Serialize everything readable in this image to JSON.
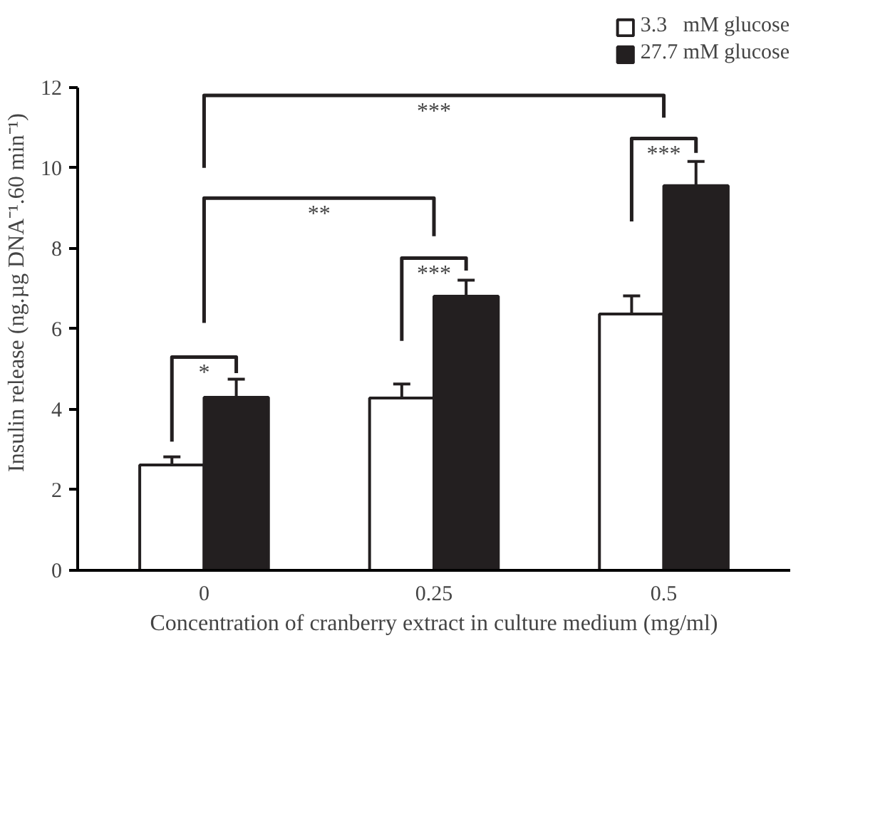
{
  "chart_data": {
    "type": "bar",
    "categories": [
      "0",
      "0.25",
      "0.5"
    ],
    "xlabel": "Concentration of cranberry extract in culture medium (mg/ml)",
    "ylabel": "Insulin release (ng.µg DNA⁻¹.60 min⁻¹)",
    "series": [
      {
        "name": "3.3   mM glucose",
        "color": "#ffffff",
        "values": [
          2.62,
          4.28,
          6.37
        ],
        "errors": [
          [
            2.62,
            2.82
          ],
          [
            4.28,
            4.63
          ],
          [
            6.37,
            6.82
          ]
        ]
      },
      {
        "name": "27.7 mM glucose",
        "color": "#231f20",
        "values": [
          4.3,
          6.81,
          9.56
        ],
        "errors": [
          [
            4.3,
            4.75
          ],
          [
            6.81,
            7.21
          ],
          [
            9.56,
            10.16
          ]
        ]
      }
    ],
    "ylim": [
      0,
      12
    ],
    "yticks": [
      0,
      2,
      4,
      6,
      8,
      10,
      12
    ],
    "grid": false,
    "legend": "top right",
    "annotations": [
      "*",
      "**",
      "***",
      "***",
      "***"
    ]
  }
}
